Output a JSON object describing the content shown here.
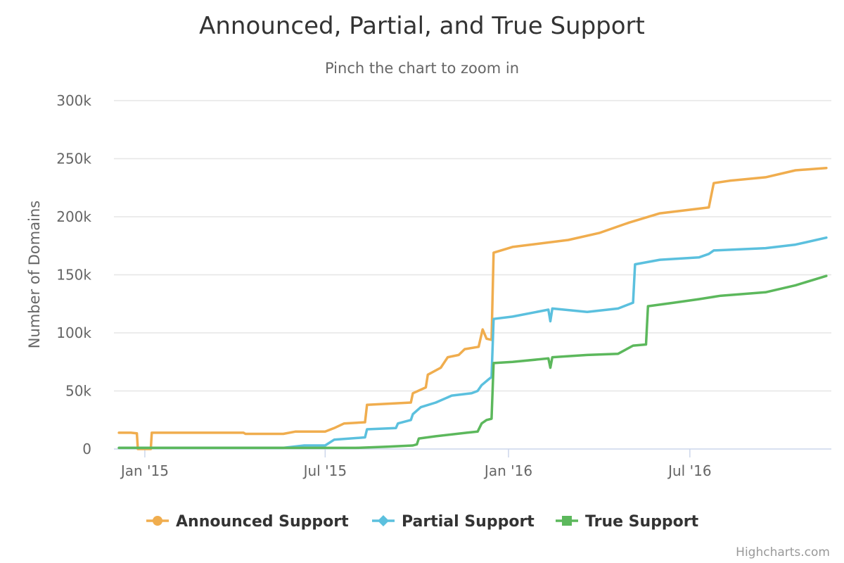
{
  "chart_data": {
    "type": "line",
    "title": "Announced, Partial, and True Support",
    "subtitle": "Pinch the chart to zoom in",
    "xlabel": "",
    "ylabel": "Number of Domains",
    "x_range": [
      "2014-12-01",
      "2016-11-20"
    ],
    "ylim": [
      0,
      300000
    ],
    "y_ticks": [
      0,
      50000,
      100000,
      150000,
      200000,
      250000,
      300000
    ],
    "y_tick_labels": [
      "0",
      "50k",
      "100k",
      "150k",
      "200k",
      "250k",
      "300k"
    ],
    "x_ticks": [
      "2015-01-01",
      "2015-07-01",
      "2016-01-01",
      "2016-07-01"
    ],
    "x_tick_labels": [
      "Jan '15",
      "Jul '15",
      "Jan '16",
      "Jul '16"
    ],
    "grid": true,
    "legend_position": "bottom-center",
    "series": [
      {
        "name": "Announced Support",
        "color": "#f0ad4e",
        "marker": "circle",
        "points": [
          [
            "2014-12-06",
            14000
          ],
          [
            "2014-12-18",
            14000
          ],
          [
            "2014-12-24",
            13500
          ],
          [
            "2014-12-25",
            0
          ],
          [
            "2015-01-07",
            0
          ],
          [
            "2015-01-08",
            14000
          ],
          [
            "2015-04-10",
            14000
          ],
          [
            "2015-04-12",
            13000
          ],
          [
            "2015-05-20",
            13000
          ],
          [
            "2015-06-01",
            15000
          ],
          [
            "2015-07-01",
            15000
          ],
          [
            "2015-07-10",
            18000
          ],
          [
            "2015-07-20",
            22000
          ],
          [
            "2015-08-10",
            23000
          ],
          [
            "2015-08-12",
            38000
          ],
          [
            "2015-09-25",
            40000
          ],
          [
            "2015-09-27",
            48000
          ],
          [
            "2015-10-10",
            53000
          ],
          [
            "2015-10-12",
            64000
          ],
          [
            "2015-10-25",
            70000
          ],
          [
            "2015-11-01",
            79000
          ],
          [
            "2015-11-12",
            81000
          ],
          [
            "2015-11-18",
            86000
          ],
          [
            "2015-12-02",
            88000
          ],
          [
            "2015-12-06",
            103000
          ],
          [
            "2015-12-10",
            95000
          ],
          [
            "2015-12-15",
            94000
          ],
          [
            "2015-12-17",
            169000
          ],
          [
            "2016-01-05",
            174000
          ],
          [
            "2016-03-01",
            180000
          ],
          [
            "2016-04-01",
            186000
          ],
          [
            "2016-05-01",
            195000
          ],
          [
            "2016-06-01",
            203000
          ],
          [
            "2016-07-10",
            207000
          ],
          [
            "2016-07-20",
            208000
          ],
          [
            "2016-07-25",
            229000
          ],
          [
            "2016-08-10",
            231000
          ],
          [
            "2016-09-15",
            234000
          ],
          [
            "2016-10-15",
            240000
          ],
          [
            "2016-11-15",
            242000
          ]
        ]
      },
      {
        "name": "Partial Support",
        "color": "#5bc0de",
        "marker": "diamond",
        "points": [
          [
            "2014-12-06",
            1000
          ],
          [
            "2015-05-20",
            1000
          ],
          [
            "2015-06-10",
            3000
          ],
          [
            "2015-07-01",
            3000
          ],
          [
            "2015-07-10",
            8000
          ],
          [
            "2015-08-10",
            10000
          ],
          [
            "2015-08-12",
            17000
          ],
          [
            "2015-09-10",
            18000
          ],
          [
            "2015-09-12",
            22000
          ],
          [
            "2015-09-25",
            25000
          ],
          [
            "2015-09-27",
            30000
          ],
          [
            "2015-10-05",
            36000
          ],
          [
            "2015-10-20",
            40000
          ],
          [
            "2015-11-05",
            46000
          ],
          [
            "2015-11-25",
            48000
          ],
          [
            "2015-12-01",
            50000
          ],
          [
            "2015-12-05",
            55000
          ],
          [
            "2015-12-12",
            60000
          ],
          [
            "2015-12-15",
            62000
          ],
          [
            "2015-12-17",
            112000
          ],
          [
            "2016-01-05",
            114000
          ],
          [
            "2016-02-10",
            120000
          ],
          [
            "2016-02-12",
            110000
          ],
          [
            "2016-02-14",
            121000
          ],
          [
            "2016-03-20",
            118000
          ],
          [
            "2016-04-20",
            121000
          ],
          [
            "2016-05-05",
            126000
          ],
          [
            "2016-05-07",
            159000
          ],
          [
            "2016-06-01",
            163000
          ],
          [
            "2016-07-10",
            165000
          ],
          [
            "2016-07-20",
            168000
          ],
          [
            "2016-07-25",
            171000
          ],
          [
            "2016-09-15",
            173000
          ],
          [
            "2016-10-15",
            176000
          ],
          [
            "2016-11-15",
            182000
          ]
        ]
      },
      {
        "name": "True Support",
        "color": "#5cb85c",
        "marker": "square",
        "points": [
          [
            "2014-12-06",
            1000
          ],
          [
            "2015-08-01",
            1000
          ],
          [
            "2015-09-01",
            2000
          ],
          [
            "2015-09-27",
            3000
          ],
          [
            "2015-10-01",
            4000
          ],
          [
            "2015-10-03",
            9000
          ],
          [
            "2015-10-20",
            11000
          ],
          [
            "2015-11-20",
            14000
          ],
          [
            "2015-12-01",
            15000
          ],
          [
            "2015-12-05",
            22000
          ],
          [
            "2015-12-10",
            25000
          ],
          [
            "2015-12-15",
            26000
          ],
          [
            "2015-12-17",
            74000
          ],
          [
            "2016-01-05",
            75000
          ],
          [
            "2016-02-10",
            78000
          ],
          [
            "2016-02-12",
            70000
          ],
          [
            "2016-02-14",
            79000
          ],
          [
            "2016-03-20",
            81000
          ],
          [
            "2016-04-20",
            82000
          ],
          [
            "2016-05-05",
            89000
          ],
          [
            "2016-05-18",
            90000
          ],
          [
            "2016-05-20",
            123000
          ],
          [
            "2016-06-15",
            126000
          ],
          [
            "2016-07-10",
            129000
          ],
          [
            "2016-08-01",
            132000
          ],
          [
            "2016-09-15",
            135000
          ],
          [
            "2016-10-15",
            141000
          ],
          [
            "2016-11-15",
            149000
          ]
        ]
      }
    ]
  },
  "credits": "Highcharts.com"
}
